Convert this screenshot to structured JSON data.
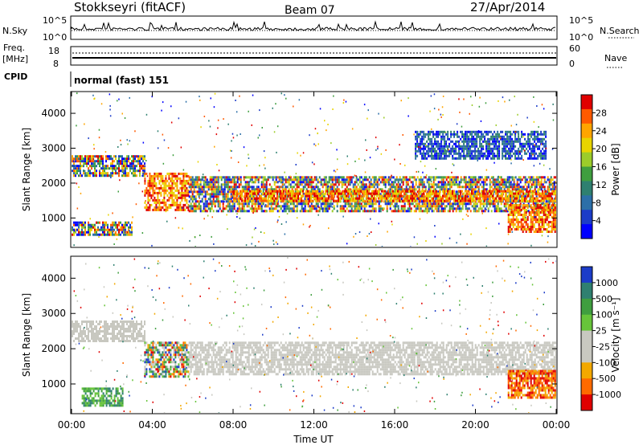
{
  "header": {
    "station": "Stokkseyri (fitACF)",
    "beam": "Beam 07",
    "date": "27/Apr/2014"
  },
  "noise_panel": {
    "left_label": "N.Sky",
    "left_ticks": [
      "10^5",
      "10^0"
    ],
    "right_ticks": [
      "10^5",
      "10^0"
    ],
    "right_label": "N.Search"
  },
  "freq_panel": {
    "left_label_top": "Freq.",
    "left_label_units": "[MHz]",
    "left_ticks": [
      "18",
      "8"
    ],
    "right_ticks": [
      "60",
      "0"
    ],
    "right_label": "Nave"
  },
  "cpid_panel": {
    "label": "CPID",
    "value": "normal (fast) 151"
  },
  "chart_data": [
    {
      "type": "heatmap",
      "name": "power",
      "ylabel": "Slant Range [km]",
      "xlabel": "",
      "yticks": [
        1000,
        2000,
        3000,
        4000
      ],
      "ylim": [
        180,
        4600
      ],
      "xlim": [
        0,
        24
      ],
      "colorbar": {
        "label": "Power [dB]",
        "ticks": [
          "28",
          "24",
          "20",
          "16",
          "12",
          "8",
          "4"
        ],
        "colors": [
          "#e00000",
          "#ff5a00",
          "#ffa500",
          "#e8d400",
          "#9ccc2a",
          "#3f9e3f",
          "#2f8070",
          "#2c6fa8",
          "#1c3cc8",
          "#0000ff"
        ]
      },
      "regions": [
        {
          "t0": 0,
          "t1": 3.6,
          "r0": 2200,
          "r1": 2800,
          "tone": "mixed"
        },
        {
          "t0": 3.6,
          "t1": 5.8,
          "r0": 1200,
          "r1": 2300,
          "tone": "high"
        },
        {
          "t0": 5.8,
          "t1": 24,
          "r0": 1200,
          "r1": 2200,
          "tone": "mixed"
        },
        {
          "t0": 8,
          "t1": 24,
          "r0": 1500,
          "r1": 1800,
          "tone": "high"
        },
        {
          "t0": 0,
          "t1": 3,
          "r0": 500,
          "r1": 900,
          "tone": "mixed"
        },
        {
          "t0": 17,
          "t1": 23.5,
          "r0": 2700,
          "r1": 3500,
          "tone": "low"
        },
        {
          "t0": 21.6,
          "t1": 24,
          "r0": 600,
          "r1": 1400,
          "tone": "high"
        }
      ]
    },
    {
      "type": "heatmap",
      "name": "velocity",
      "ylabel": "Slant Range [km]",
      "xlabel": "Time UT",
      "xticks": [
        "00:00",
        "04:00",
        "08:00",
        "12:00",
        "16:00",
        "20:00",
        "00:00"
      ],
      "yticks": [
        1000,
        2000,
        3000,
        4000
      ],
      "ylim": [
        180,
        4600
      ],
      "xlim": [
        0,
        24
      ],
      "colorbar": {
        "label": "Velocity [m s⁻¹]",
        "ticks": [
          "1000",
          "500",
          "100",
          "25",
          "-25",
          "-100",
          "-500",
          "-1000"
        ],
        "colors": [
          "#1c3cc8",
          "#2f8070",
          "#3f9e3f",
          "#67c43a",
          "#c8c8c0",
          "#c8c8c0",
          "#f3a800",
          "#ff6a00",
          "#e00000"
        ]
      },
      "regions": [
        {
          "t0": 0,
          "t1": 3.6,
          "r0": 2200,
          "r1": 2800,
          "tone": "ground"
        },
        {
          "t0": 5.8,
          "t1": 24,
          "r0": 1300,
          "r1": 2200,
          "tone": "ground"
        },
        {
          "t0": 3.6,
          "t1": 5.8,
          "r0": 1200,
          "r1": 2200,
          "tone": "mixed"
        },
        {
          "t0": 0.5,
          "t1": 2.5,
          "r0": 400,
          "r1": 900,
          "tone": "green"
        },
        {
          "t0": 21.6,
          "t1": 24,
          "r0": 600,
          "r1": 1400,
          "tone": "neg"
        }
      ]
    }
  ]
}
